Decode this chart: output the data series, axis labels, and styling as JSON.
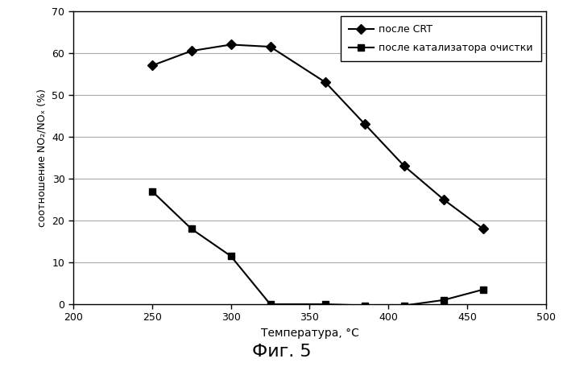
{
  "series1_x": [
    250,
    275,
    300,
    325,
    360,
    385,
    410,
    435,
    460
  ],
  "series1_y": [
    57,
    60.5,
    62,
    61.5,
    53,
    43,
    33,
    25,
    18
  ],
  "series2_x": [
    250,
    275,
    300,
    325,
    360,
    385,
    410,
    435,
    460
  ],
  "series2_y": [
    27,
    18,
    11.5,
    0,
    0,
    -0.3,
    -0.3,
    1,
    3.5
  ],
  "series1_label": "после CRT",
  "series2_label": "после катализатора очистки",
  "xlabel": "Температура, °C",
  "ylabel": "соотношение NO₂/NOₓ (%)",
  "fig_label": "Фиг. 5",
  "xlim": [
    200,
    500
  ],
  "ylim": [
    0,
    70
  ],
  "xticks": [
    200,
    250,
    300,
    350,
    400,
    450,
    500
  ],
  "yticks": [
    0,
    10,
    20,
    30,
    40,
    50,
    60,
    70
  ],
  "line_color": "#000000",
  "marker1": "D",
  "marker2": "s",
  "bg_color": "#ffffff",
  "plot_bg_color": "#ffffff",
  "grid_color": "#aaaaaa",
  "marker1_size": 6,
  "marker2_size": 6,
  "linewidth": 1.5
}
